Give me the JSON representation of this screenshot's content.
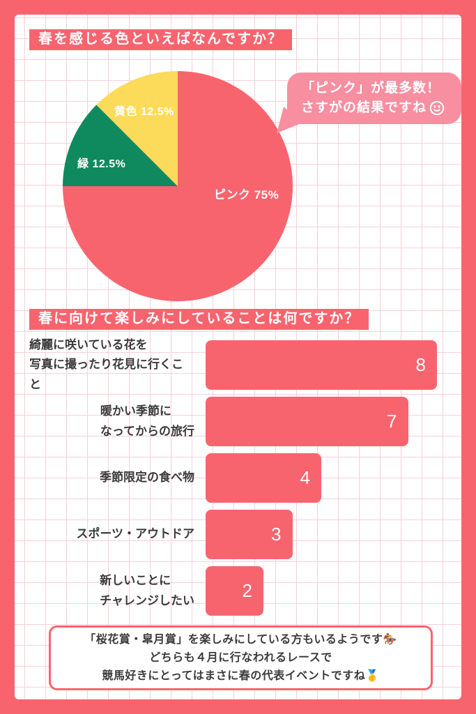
{
  "colors": {
    "accent": "#F8646E",
    "bubble_pink": "#F78FA1",
    "green": "#0F8A5E",
    "yellow": "#FBDB59",
    "grid_line": "#F9CFD8",
    "text_dark": "#3B3B3B"
  },
  "sections": {
    "pie": {
      "title": "春を感じる色といえばなんですか？",
      "bubble": {
        "line1": "「ピンク」が最多数！",
        "line2": "さすがの結果ですね",
        "emoji_name": "smiley-face"
      }
    },
    "bar": {
      "title": "春に向けて楽しみにしていることは何ですか？"
    },
    "footer": {
      "lines": [
        {
          "text": "「桜花賞・皐月賞」を楽しみにしている方もいるようです",
          "emoji": "🏇"
        },
        {
          "text": "どちらも４月に行なわれるレースで",
          "emoji": ""
        },
        {
          "text": "競馬好きにとってはまさに春の代表イベントですね",
          "emoji": "🥇"
        }
      ]
    }
  },
  "chart_data": [
    {
      "type": "pie",
      "title": "春を感じる色といえばなんですか？",
      "direction": "clockwise",
      "start_angle_deg_from_top": 0,
      "legend": "none",
      "label_position": "inside",
      "slices": [
        {
          "label": "ピンク",
          "value": 75,
          "display": "ピンク 75%",
          "color": "#F8646E"
        },
        {
          "label": "緑",
          "value": 12.5,
          "display": "緑 12.5%",
          "color": "#0F8A5E"
        },
        {
          "label": "黄色",
          "value": 12.5,
          "display": "黄色 12.5%",
          "color": "#FBDB59"
        }
      ]
    },
    {
      "type": "bar",
      "orientation": "horizontal",
      "title": "春に向けて楽しみにしていることは何ですか？",
      "categories": [
        "綺麗に咲いている花を\n写真に撮ったり花見に行くこと",
        "暖かい季節に\nなってからの旅行",
        "季節限定の食べ物",
        "スポーツ・アウトドア",
        "新しいことに\nチャレンジしたい"
      ],
      "values": [
        8,
        7,
        4,
        3,
        2
      ],
      "xlim": [
        0,
        8
      ],
      "grid": false,
      "bar_color": "#F8646E",
      "value_label_color": "#FFFFFF"
    }
  ]
}
